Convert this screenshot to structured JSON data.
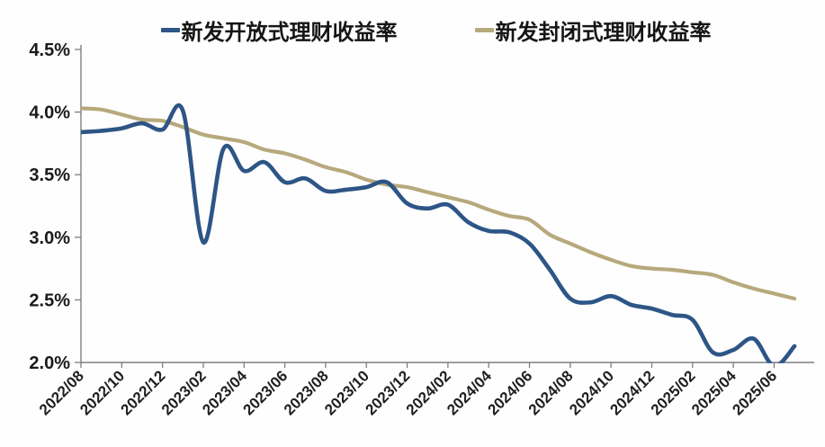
{
  "legend": {
    "items": [
      {
        "label": "新发开放式理财收益率",
        "color": "#2d5586"
      },
      {
        "label": "新发封闭式理财收益率",
        "color": "#b7a97c"
      }
    ]
  },
  "axes": {
    "y_ticks": [
      "4.5%",
      "4.0%",
      "3.5%",
      "3.0%",
      "2.5%",
      "2.0%"
    ],
    "y_tick_values": [
      4.5,
      4.0,
      3.5,
      3.0,
      2.5,
      2.0
    ],
    "axis_color": "#7f7f7f",
    "label_color": "#1a1a1a"
  },
  "chart_data": {
    "type": "line",
    "title": "",
    "xlabel": "",
    "ylabel": "",
    "ylim": [
      2.0,
      4.5
    ],
    "grid": false,
    "legend_position": "top",
    "x_tick_every": 2,
    "x": [
      "2022/08",
      "2022/09",
      "2022/10",
      "2022/11",
      "2022/12",
      "2023/01",
      "2023/02",
      "2023/03",
      "2023/04",
      "2023/05",
      "2023/06",
      "2023/07",
      "2023/08",
      "2023/09",
      "2023/10",
      "2023/11",
      "2023/12",
      "2024/01",
      "2024/02",
      "2024/03",
      "2024/04",
      "2024/05",
      "2024/06",
      "2024/07",
      "2024/08",
      "2024/09",
      "2024/10",
      "2024/11",
      "2024/12",
      "2025/01",
      "2025/02",
      "2025/03",
      "2025/04",
      "2025/05",
      "2025/06",
      "2025/07"
    ],
    "series": [
      {
        "name": "新发开放式理财收益率",
        "color": "#2d5586",
        "values": [
          3.84,
          3.85,
          3.87,
          3.91,
          3.86,
          4.01,
          2.96,
          3.71,
          3.53,
          3.6,
          3.44,
          3.47,
          3.37,
          3.38,
          3.4,
          3.44,
          3.27,
          3.23,
          3.26,
          3.12,
          3.05,
          3.04,
          2.95,
          2.74,
          2.51,
          2.48,
          2.53,
          2.46,
          2.43,
          2.38,
          2.34,
          2.08,
          2.1,
          2.19,
          1.97,
          2.13
        ]
      },
      {
        "name": "新发封闭式理财收益率",
        "color": "#b7a97c",
        "values": [
          4.03,
          4.02,
          3.98,
          3.94,
          3.93,
          3.88,
          3.82,
          3.79,
          3.76,
          3.7,
          3.67,
          3.62,
          3.56,
          3.52,
          3.46,
          3.42,
          3.4,
          3.36,
          3.32,
          3.28,
          3.22,
          3.17,
          3.14,
          3.02,
          2.95,
          2.88,
          2.82,
          2.77,
          2.75,
          2.74,
          2.72,
          2.7,
          2.64,
          2.59,
          2.55,
          2.51
        ]
      }
    ]
  }
}
